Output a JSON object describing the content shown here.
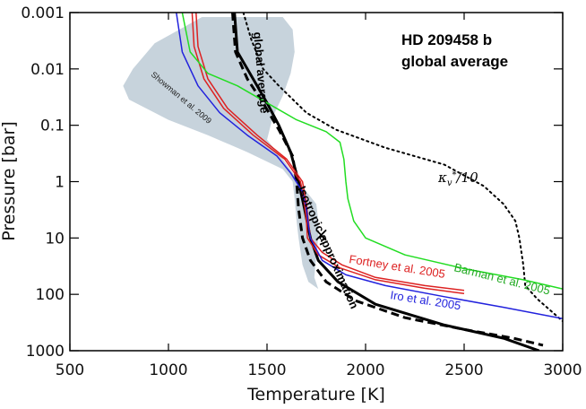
{
  "chart_data": {
    "type": "line",
    "title": "HD 209458 b",
    "subtitle": "global average",
    "xlabel": "Temperature [K]",
    "ylabel": "Pressure [bar]",
    "xlim": [
      500,
      3000
    ],
    "ylim": [
      1000,
      0.001
    ],
    "yscale": "log",
    "xticks": [
      500,
      1000,
      1500,
      2000,
      2500,
      3000
    ],
    "yticks": [
      {
        "value": 0.001,
        "label": "0.001"
      },
      {
        "value": 0.01,
        "label": "0.01"
      },
      {
        "value": 0.1,
        "label": "0.1"
      },
      {
        "value": 1,
        "label": "1"
      },
      {
        "value": 10,
        "label": "10"
      },
      {
        "value": 100,
        "label": "100"
      },
      {
        "value": 1000,
        "label": "1000"
      }
    ],
    "shaded_region": {
      "name": "Showman et al. 2009",
      "color": "#c7d3dc",
      "left": [
        [
          1170,
          0.0012
        ],
        [
          930,
          0.0035
        ],
        [
          820,
          0.01
        ],
        [
          770,
          0.02
        ],
        [
          800,
          0.035
        ],
        [
          1000,
          0.08
        ],
        [
          1200,
          0.15
        ],
        [
          1400,
          0.3
        ],
        [
          1580,
          0.6
        ],
        [
          1630,
          1.0
        ],
        [
          1640,
          2
        ],
        [
          1650,
          5
        ],
        [
          1660,
          10
        ],
        [
          1680,
          30
        ],
        [
          1710,
          60
        ],
        [
          1760,
          80
        ]
      ],
      "right": [
        [
          1760,
          80
        ],
        [
          1740,
          50
        ],
        [
          1750,
          20
        ],
        [
          1760,
          10
        ],
        [
          1760,
          5
        ],
        [
          1750,
          2.5
        ],
        [
          1700,
          1.5
        ],
        [
          1580,
          0.4
        ],
        [
          1500,
          0.18
        ],
        [
          1530,
          0.07
        ],
        [
          1580,
          0.03
        ],
        [
          1620,
          0.012
        ],
        [
          1640,
          0.005
        ],
        [
          1630,
          0.002
        ],
        [
          1580,
          0.0012
        ]
      ]
    },
    "series": [
      {
        "name": "global average",
        "color": "#000000",
        "style": "solid",
        "width": 3,
        "points": [
          [
            1335,
            0.001
          ],
          [
            1350,
            0.005
          ],
          [
            1400,
            0.01
          ],
          [
            1450,
            0.02
          ],
          [
            1500,
            0.04
          ],
          [
            1560,
            0.1
          ],
          [
            1620,
            0.3
          ],
          [
            1660,
            1
          ],
          [
            1690,
            3
          ],
          [
            1720,
            10
          ],
          [
            1760,
            25
          ],
          [
            1860,
            60
          ],
          [
            2050,
            150
          ],
          [
            2400,
            350
          ],
          [
            2700,
            600
          ],
          [
            2880,
            1000
          ]
        ]
      },
      {
        "name": "Isotropic approximation",
        "color": "#000000",
        "style": "dashed",
        "width": 3,
        "points": [
          [
            1325,
            0.001
          ],
          [
            1340,
            0.005
          ],
          [
            1400,
            0.015
          ],
          [
            1480,
            0.04
          ],
          [
            1560,
            0.12
          ],
          [
            1630,
            0.35
          ],
          [
            1650,
            1
          ],
          [
            1660,
            3
          ],
          [
            1680,
            10
          ],
          [
            1720,
            25
          ],
          [
            1800,
            60
          ],
          [
            1950,
            130
          ],
          [
            2200,
            260
          ],
          [
            2500,
            420
          ],
          [
            2750,
            600
          ],
          [
            2900,
            800
          ]
        ]
      },
      {
        "name": "κ_v*/10",
        "color": "#000000",
        "style": "dotted",
        "width": 2,
        "points": [
          [
            1380,
            0.001
          ],
          [
            1420,
            0.003
          ],
          [
            1480,
            0.01
          ],
          [
            1560,
            0.02
          ],
          [
            1700,
            0.06
          ],
          [
            1850,
            0.12
          ],
          [
            2100,
            0.25
          ],
          [
            2400,
            0.5
          ],
          [
            2600,
            1.2
          ],
          [
            2700,
            2.5
          ],
          [
            2760,
            5
          ],
          [
            2780,
            10
          ],
          [
            2800,
            30
          ],
          [
            2810,
            70
          ],
          [
            2870,
            120
          ],
          [
            3000,
            300
          ]
        ]
      },
      {
        "name": "Fortney et al. 2005",
        "color": "#dd2222",
        "style": "solid",
        "width": 1.5,
        "points": [
          [
            1140,
            0.001
          ],
          [
            1150,
            0.004
          ],
          [
            1200,
            0.015
          ],
          [
            1300,
            0.05
          ],
          [
            1450,
            0.15
          ],
          [
            1600,
            0.4
          ],
          [
            1680,
            1
          ],
          [
            1700,
            2.5
          ],
          [
            1710,
            5
          ],
          [
            1720,
            10
          ],
          [
            1780,
            18
          ],
          [
            1880,
            30
          ],
          [
            2050,
            50
          ],
          [
            2300,
            70
          ],
          [
            2500,
            85
          ]
        ]
      },
      {
        "name": "Fortney et al. 2005",
        "color": "#dd2222",
        "style": "solid",
        "width": 1.5,
        "points": [
          [
            1120,
            0.001
          ],
          [
            1130,
            0.004
          ],
          [
            1180,
            0.015
          ],
          [
            1280,
            0.05
          ],
          [
            1430,
            0.15
          ],
          [
            1590,
            0.4
          ],
          [
            1670,
            1
          ],
          [
            1690,
            2.5
          ],
          [
            1700,
            5
          ],
          [
            1705,
            10
          ],
          [
            1760,
            20
          ],
          [
            1870,
            34
          ],
          [
            2050,
            55
          ],
          [
            2300,
            78
          ],
          [
            2500,
            97
          ]
        ]
      },
      {
        "name": "Barman et al. 2005",
        "color": "#22dd22",
        "style": "solid",
        "width": 1.5,
        "points": [
          [
            1070,
            0.001
          ],
          [
            1110,
            0.005
          ],
          [
            1200,
            0.012
          ],
          [
            1350,
            0.02
          ],
          [
            1500,
            0.04
          ],
          [
            1650,
            0.08
          ],
          [
            1800,
            0.13
          ],
          [
            1870,
            0.2
          ],
          [
            1890,
            0.4
          ],
          [
            1900,
            1
          ],
          [
            1910,
            2
          ],
          [
            1940,
            5
          ],
          [
            2000,
            10
          ],
          [
            2200,
            20
          ],
          [
            2500,
            35
          ],
          [
            2800,
            55
          ],
          [
            3000,
            80
          ]
        ]
      },
      {
        "name": "Iro et al. 2005",
        "color": "#2222dd",
        "style": "solid",
        "width": 1.5,
        "points": [
          [
            1040,
            0.001
          ],
          [
            1070,
            0.005
          ],
          [
            1150,
            0.02
          ],
          [
            1260,
            0.06
          ],
          [
            1400,
            0.15
          ],
          [
            1550,
            0.35
          ],
          [
            1620,
            0.7
          ],
          [
            1680,
            1.5
          ],
          [
            1700,
            3
          ],
          [
            1710,
            6
          ],
          [
            1720,
            10
          ],
          [
            1780,
            25
          ],
          [
            1900,
            45
          ],
          [
            2100,
            70
          ],
          [
            2400,
            110
          ],
          [
            2700,
            170
          ],
          [
            3000,
            270
          ]
        ]
      }
    ],
    "marker": {
      "symbol": "×",
      "x": 1775,
      "y": 9
    },
    "annotations": {
      "global_average_label": "global average",
      "isotropic_label": "Isotropic approximation",
      "showman_label": "Showman et al. 2009",
      "fortney_label": "Fortney et al. 2005",
      "barman_label": "Barman et al. 2005",
      "iro_label": "Iro et al. 2005",
      "kappa_symbol": "κ",
      "kappa_sub": "v",
      "kappa_sup": "*",
      "kappa_suffix": "/10"
    }
  }
}
